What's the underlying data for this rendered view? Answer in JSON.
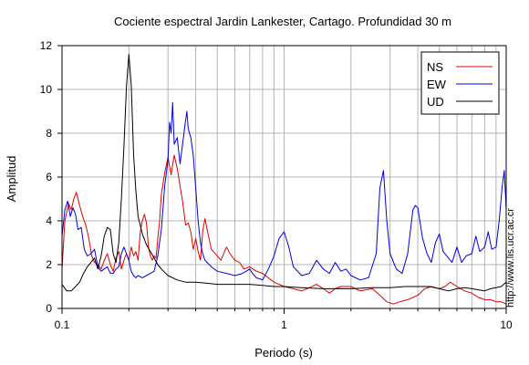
{
  "chart_data": {
    "type": "line",
    "title": "Cociente espectral Jardin Lankester, Cartago. Profundidad 30 m",
    "xlabel": "Periodo (s)",
    "ylabel": "Amplitud",
    "xscale": "log",
    "xlim": [
      0.1,
      10
    ],
    "ylim": [
      0,
      12
    ],
    "xticks": [
      "0.1",
      "1",
      "10"
    ],
    "yticks": [
      "0",
      "2",
      "4",
      "6",
      "8",
      "10",
      "12"
    ],
    "grid": true,
    "legend": "top-right",
    "series": [
      {
        "name": "NS",
        "color": "#e00000",
        "points": [
          [
            0.1,
            1.8
          ],
          [
            0.103,
            4.0
          ],
          [
            0.107,
            4.8
          ],
          [
            0.11,
            4.5
          ],
          [
            0.113,
            5.0
          ],
          [
            0.116,
            5.3
          ],
          [
            0.12,
            4.7
          ],
          [
            0.124,
            4.2
          ],
          [
            0.128,
            3.8
          ],
          [
            0.132,
            3.2
          ],
          [
            0.136,
            2.4
          ],
          [
            0.14,
            2.1
          ],
          [
            0.145,
            2.0
          ],
          [
            0.15,
            1.8
          ],
          [
            0.155,
            2.2
          ],
          [
            0.16,
            2.5
          ],
          [
            0.165,
            2.0
          ],
          [
            0.17,
            1.7
          ],
          [
            0.175,
            2.3
          ],
          [
            0.18,
            2.6
          ],
          [
            0.185,
            1.8
          ],
          [
            0.19,
            2.2
          ],
          [
            0.195,
            2.5
          ],
          [
            0.2,
            2.2
          ],
          [
            0.205,
            2.8
          ],
          [
            0.21,
            2.4
          ],
          [
            0.215,
            2.6
          ],
          [
            0.22,
            2.2
          ],
          [
            0.225,
            3.5
          ],
          [
            0.23,
            4.0
          ],
          [
            0.235,
            4.3
          ],
          [
            0.24,
            3.9
          ],
          [
            0.245,
            2.8
          ],
          [
            0.25,
            2.4
          ],
          [
            0.255,
            2.2
          ],
          [
            0.26,
            2.4
          ],
          [
            0.265,
            2.3
          ],
          [
            0.27,
            3.2
          ],
          [
            0.275,
            4.0
          ],
          [
            0.28,
            5.2
          ],
          [
            0.29,
            6.2
          ],
          [
            0.3,
            6.9
          ],
          [
            0.31,
            6.1
          ],
          [
            0.32,
            7.0
          ],
          [
            0.33,
            6.4
          ],
          [
            0.34,
            5.6
          ],
          [
            0.35,
            4.8
          ],
          [
            0.36,
            3.8
          ],
          [
            0.37,
            3.9
          ],
          [
            0.38,
            3.5
          ],
          [
            0.39,
            2.7
          ],
          [
            0.4,
            3.2
          ],
          [
            0.41,
            2.6
          ],
          [
            0.42,
            2.2
          ],
          [
            0.43,
            3.5
          ],
          [
            0.44,
            4.1
          ],
          [
            0.45,
            3.6
          ],
          [
            0.47,
            2.7
          ],
          [
            0.5,
            2.4
          ],
          [
            0.52,
            2.2
          ],
          [
            0.55,
            2.8
          ],
          [
            0.57,
            2.5
          ],
          [
            0.6,
            2.2
          ],
          [
            0.63,
            2.1
          ],
          [
            0.66,
            1.8
          ],
          [
            0.7,
            1.9
          ],
          [
            0.75,
            1.7
          ],
          [
            0.8,
            1.6
          ],
          [
            0.9,
            1.2
          ],
          [
            1.0,
            1.0
          ],
          [
            1.1,
            0.9
          ],
          [
            1.2,
            0.8
          ],
          [
            1.3,
            0.95
          ],
          [
            1.4,
            1.1
          ],
          [
            1.5,
            0.9
          ],
          [
            1.6,
            0.7
          ],
          [
            1.7,
            0.9
          ],
          [
            1.8,
            1.0
          ],
          [
            2.0,
            1.0
          ],
          [
            2.2,
            0.8
          ],
          [
            2.5,
            0.9
          ],
          [
            2.7,
            0.6
          ],
          [
            2.9,
            0.3
          ],
          [
            3.1,
            0.2
          ],
          [
            3.3,
            0.3
          ],
          [
            3.6,
            0.4
          ],
          [
            3.8,
            0.5
          ],
          [
            4.0,
            0.6
          ],
          [
            4.3,
            0.9
          ],
          [
            4.6,
            1.0
          ],
          [
            5.0,
            0.9
          ],
          [
            5.3,
            1.0
          ],
          [
            5.6,
            1.2
          ],
          [
            6.0,
            1.0
          ],
          [
            6.5,
            0.8
          ],
          [
            7.0,
            0.7
          ],
          [
            7.5,
            0.5
          ],
          [
            8.0,
            0.4
          ],
          [
            8.5,
            0.4
          ],
          [
            9.0,
            0.3
          ],
          [
            9.5,
            0.3
          ],
          [
            10.0,
            0.2
          ]
        ]
      },
      {
        "name": "EW",
        "color": "#0000e0",
        "points": [
          [
            0.1,
            3.3
          ],
          [
            0.103,
            4.5
          ],
          [
            0.106,
            4.9
          ],
          [
            0.109,
            4.2
          ],
          [
            0.112,
            4.6
          ],
          [
            0.115,
            4.3
          ],
          [
            0.118,
            3.6
          ],
          [
            0.122,
            3.7
          ],
          [
            0.126,
            2.7
          ],
          [
            0.13,
            2.4
          ],
          [
            0.135,
            2.5
          ],
          [
            0.14,
            2.7
          ],
          [
            0.145,
            1.9
          ],
          [
            0.15,
            1.7
          ],
          [
            0.155,
            1.8
          ],
          [
            0.16,
            1.9
          ],
          [
            0.165,
            1.6
          ],
          [
            0.17,
            1.6
          ],
          [
            0.175,
            1.8
          ],
          [
            0.18,
            1.9
          ],
          [
            0.185,
            2.5
          ],
          [
            0.19,
            2.8
          ],
          [
            0.195,
            2.5
          ],
          [
            0.2,
            2.2
          ],
          [
            0.205,
            1.7
          ],
          [
            0.21,
            1.5
          ],
          [
            0.215,
            1.4
          ],
          [
            0.22,
            1.5
          ],
          [
            0.23,
            1.4
          ],
          [
            0.24,
            1.5
          ],
          [
            0.25,
            1.6
          ],
          [
            0.26,
            1.7
          ],
          [
            0.27,
            2.4
          ],
          [
            0.28,
            3.6
          ],
          [
            0.29,
            5.6
          ],
          [
            0.3,
            6.8
          ],
          [
            0.305,
            8.5
          ],
          [
            0.31,
            8.0
          ],
          [
            0.315,
            9.4
          ],
          [
            0.32,
            7.5
          ],
          [
            0.33,
            7.8
          ],
          [
            0.34,
            6.6
          ],
          [
            0.35,
            7.6
          ],
          [
            0.36,
            8.6
          ],
          [
            0.365,
            9.0
          ],
          [
            0.37,
            8.2
          ],
          [
            0.38,
            7.8
          ],
          [
            0.39,
            7.0
          ],
          [
            0.4,
            5.5
          ],
          [
            0.41,
            4.0
          ],
          [
            0.42,
            3.0
          ],
          [
            0.43,
            2.5
          ],
          [
            0.44,
            2.2
          ],
          [
            0.45,
            2.1
          ],
          [
            0.47,
            1.9
          ],
          [
            0.5,
            1.7
          ],
          [
            0.55,
            1.6
          ],
          [
            0.6,
            1.5
          ],
          [
            0.65,
            1.6
          ],
          [
            0.7,
            1.8
          ],
          [
            0.72,
            1.6
          ],
          [
            0.75,
            1.4
          ],
          [
            0.8,
            1.3
          ],
          [
            0.85,
            1.8
          ],
          [
            0.9,
            2.4
          ],
          [
            0.95,
            3.2
          ],
          [
            1.0,
            3.5
          ],
          [
            1.05,
            2.8
          ],
          [
            1.1,
            1.9
          ],
          [
            1.2,
            1.5
          ],
          [
            1.3,
            1.6
          ],
          [
            1.4,
            2.2
          ],
          [
            1.5,
            1.8
          ],
          [
            1.6,
            1.6
          ],
          [
            1.7,
            2.1
          ],
          [
            1.8,
            1.7
          ],
          [
            1.9,
            1.8
          ],
          [
            2.0,
            1.5
          ],
          [
            2.2,
            1.3
          ],
          [
            2.4,
            1.4
          ],
          [
            2.6,
            2.5
          ],
          [
            2.7,
            5.5
          ],
          [
            2.8,
            6.3
          ],
          [
            2.9,
            4.0
          ],
          [
            3.0,
            2.5
          ],
          [
            3.2,
            1.8
          ],
          [
            3.4,
            1.6
          ],
          [
            3.6,
            2.5
          ],
          [
            3.8,
            4.5
          ],
          [
            3.9,
            4.7
          ],
          [
            4.0,
            4.6
          ],
          [
            4.2,
            3.2
          ],
          [
            4.4,
            2.5
          ],
          [
            4.6,
            2.1
          ],
          [
            4.8,
            3.0
          ],
          [
            5.0,
            3.4
          ],
          [
            5.2,
            2.6
          ],
          [
            5.4,
            2.4
          ],
          [
            5.7,
            2.1
          ],
          [
            6.0,
            2.8
          ],
          [
            6.3,
            2.1
          ],
          [
            6.6,
            2.4
          ],
          [
            7.0,
            2.5
          ],
          [
            7.3,
            3.3
          ],
          [
            7.6,
            2.6
          ],
          [
            8.0,
            2.8
          ],
          [
            8.3,
            3.5
          ],
          [
            8.6,
            2.7
          ],
          [
            9.0,
            2.8
          ],
          [
            9.3,
            4.0
          ],
          [
            9.6,
            5.6
          ],
          [
            9.8,
            6.3
          ],
          [
            10.0,
            4.5
          ]
        ]
      },
      {
        "name": "UD",
        "color": "#000000",
        "points": [
          [
            0.1,
            1.1
          ],
          [
            0.105,
            0.8
          ],
          [
            0.11,
            0.8
          ],
          [
            0.115,
            1.0
          ],
          [
            0.12,
            1.2
          ],
          [
            0.125,
            1.6
          ],
          [
            0.13,
            1.9
          ],
          [
            0.135,
            2.1
          ],
          [
            0.14,
            2.3
          ],
          [
            0.145,
            1.8
          ],
          [
            0.15,
            2.4
          ],
          [
            0.155,
            3.3
          ],
          [
            0.16,
            3.7
          ],
          [
            0.165,
            3.6
          ],
          [
            0.17,
            2.5
          ],
          [
            0.175,
            2.1
          ],
          [
            0.18,
            3.0
          ],
          [
            0.185,
            5.0
          ],
          [
            0.19,
            7.4
          ],
          [
            0.195,
            10.1
          ],
          [
            0.2,
            11.6
          ],
          [
            0.205,
            10.2
          ],
          [
            0.21,
            7.0
          ],
          [
            0.215,
            5.4
          ],
          [
            0.22,
            4.2
          ],
          [
            0.23,
            3.4
          ],
          [
            0.24,
            2.9
          ],
          [
            0.25,
            2.6
          ],
          [
            0.26,
            2.3
          ],
          [
            0.27,
            2.0
          ],
          [
            0.28,
            1.8
          ],
          [
            0.3,
            1.5
          ],
          [
            0.33,
            1.3
          ],
          [
            0.36,
            1.2
          ],
          [
            0.4,
            1.2
          ],
          [
            0.45,
            1.15
          ],
          [
            0.5,
            1.1
          ],
          [
            0.6,
            1.1
          ],
          [
            0.7,
            1.1
          ],
          [
            0.8,
            1.05
          ],
          [
            0.9,
            1.0
          ],
          [
            1.0,
            1.0
          ],
          [
            1.2,
            0.95
          ],
          [
            1.5,
            0.9
          ],
          [
            2.0,
            0.9
          ],
          [
            2.5,
            0.95
          ],
          [
            3.0,
            0.95
          ],
          [
            3.5,
            1.0
          ],
          [
            4.0,
            1.0
          ],
          [
            4.5,
            1.0
          ],
          [
            5.0,
            0.9
          ],
          [
            5.5,
            0.8
          ],
          [
            6.0,
            0.9
          ],
          [
            6.5,
            0.95
          ],
          [
            7.0,
            0.9
          ],
          [
            7.5,
            0.85
          ],
          [
            8.0,
            0.8
          ],
          [
            8.5,
            0.9
          ],
          [
            9.0,
            0.95
          ],
          [
            9.5,
            1.0
          ],
          [
            10.0,
            1.2
          ]
        ]
      }
    ]
  },
  "side_note": "http://www.lis.ucr.ac.cr"
}
